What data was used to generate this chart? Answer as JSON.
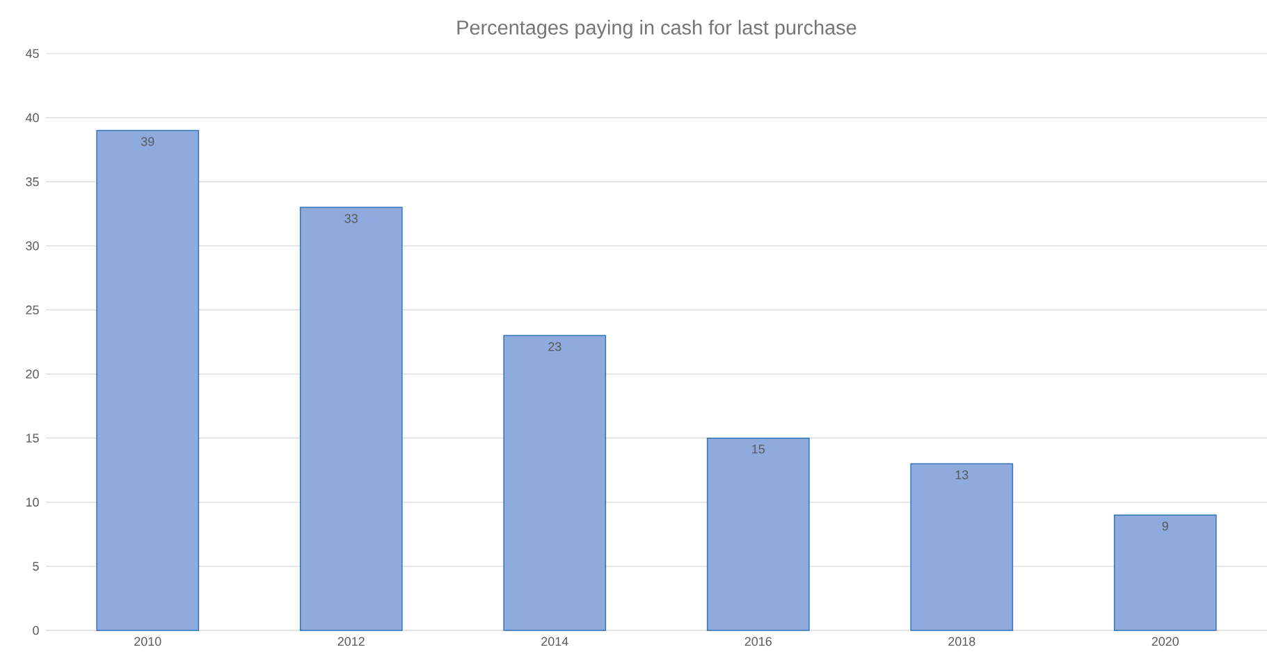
{
  "chart_data": {
    "type": "bar",
    "title": "Percentages paying in cash for last purchase",
    "categories": [
      "2010",
      "2012",
      "2014",
      "2016",
      "2018",
      "2020"
    ],
    "values": [
      39,
      33,
      23,
      15,
      13,
      9
    ],
    "color": "#8faadc",
    "ylim": [
      0,
      45
    ],
    "yticks": [
      0,
      5,
      10,
      15,
      20,
      25,
      30,
      35,
      40,
      45
    ],
    "grid": "y",
    "data_labels": true
  }
}
